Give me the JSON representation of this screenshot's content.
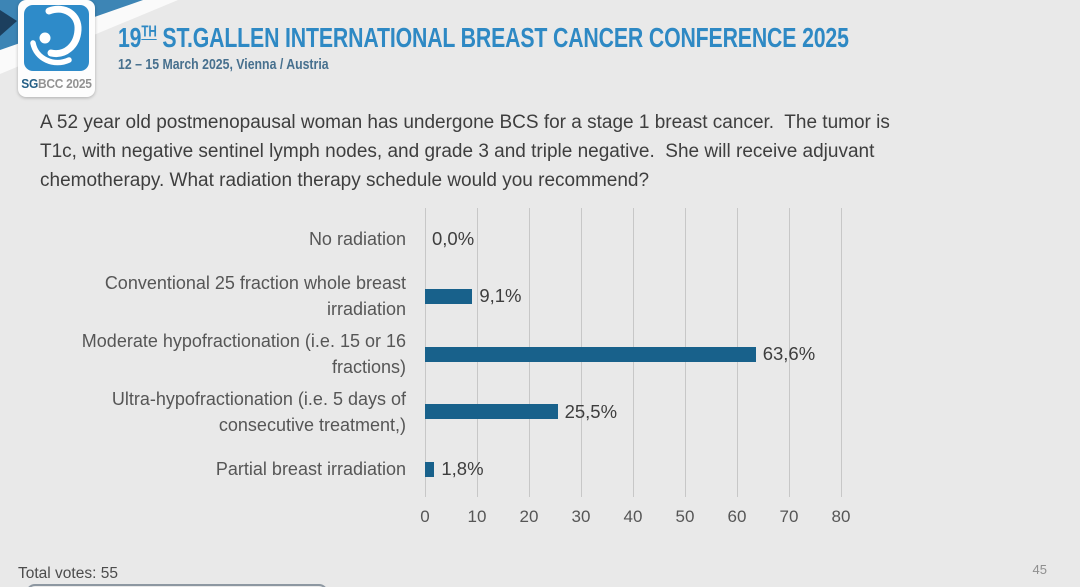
{
  "header": {
    "logo_sg": "SG",
    "logo_rest": "BCC 2025",
    "title_prefix": "19",
    "title_sup": "TH",
    "title_rest": " ST.GALLEN INTERNATIONAL BREAST CANCER CONFERENCE 2025",
    "subtitle": "12 – 15 March 2025, Vienna / Austria"
  },
  "question": "A 52 year old postmenopausal woman has undergone BCS for a stage 1 breast cancer.  The tumor is\nT1c, with negative sentinel lymph nodes, and grade 3 and triple negative.  She will receive adjuvant\nchemotherapy. What radiation therapy schedule would you recommend?",
  "chart_data": {
    "type": "bar",
    "orientation": "horizontal",
    "title": "",
    "xlabel": "",
    "ylabel": "",
    "categories": [
      "No radiation",
      "Conventional 25 fraction whole breast irradiation",
      "Moderate hypofractionation (i.e. 15 or 16 fractions)",
      "Ultra-hypofractionation (i.e. 5 days of consecutive treatment,)",
      "Partial breast irradiation"
    ],
    "display_labels": [
      "No radiation",
      "Conventional 25 fraction whole breast\nirradiation",
      "Moderate hypofractionation (i.e. 15 or 16\nfractions)",
      "Ultra-hypofractionation (i.e. 5 days of\nconsecutive treatment,)",
      "Partial breast irradiation"
    ],
    "values": [
      0,
      9.1,
      63.6,
      25.5,
      1.8
    ],
    "value_labels": [
      "0,0%",
      "9,1%",
      "63,6%",
      "25,5%",
      "1,8%"
    ],
    "x_ticks": [
      0,
      10,
      20,
      30,
      40,
      50,
      60,
      70,
      80
    ],
    "xlim": [
      0,
      80
    ],
    "grid": true,
    "legend": false,
    "bar_color": "#18618b"
  },
  "footer": {
    "total_votes": "Total votes: 55",
    "page_number": "45"
  }
}
